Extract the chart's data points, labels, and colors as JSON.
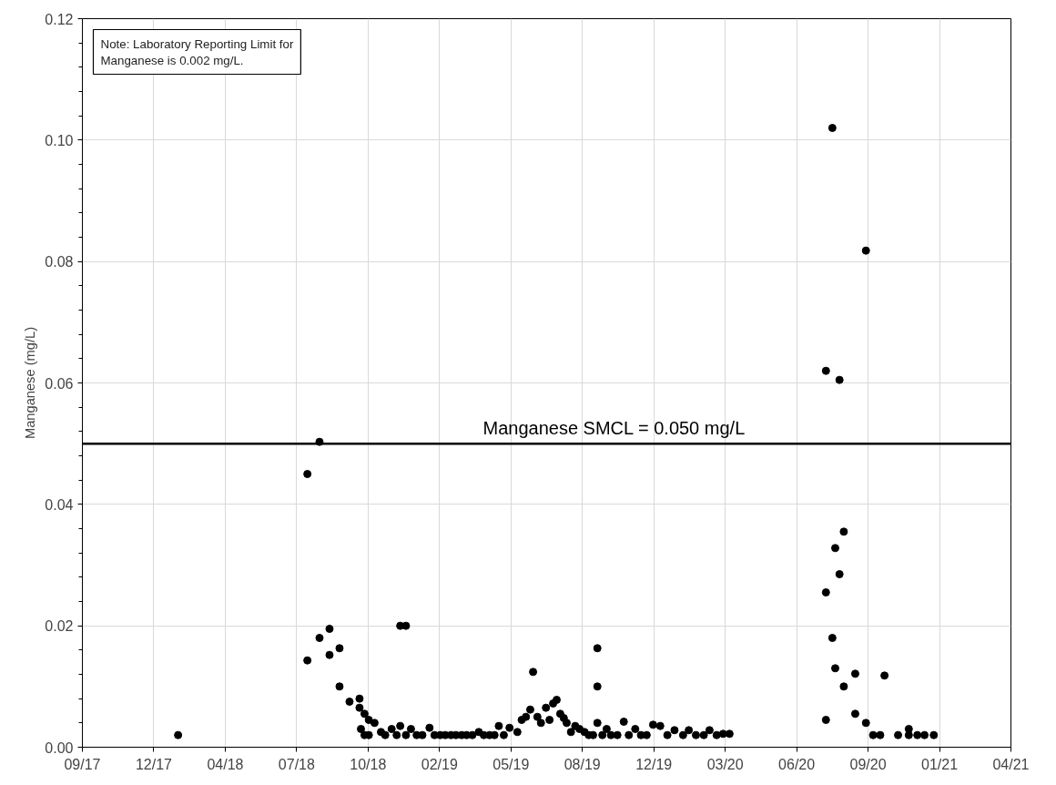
{
  "chart_data": {
    "type": "scatter",
    "ylabel": "Manganese (mg/L)",
    "x": [
      "2018-02-03",
      "2018-08-03",
      "2018-08-03",
      "2018-08-20",
      "2018-08-20",
      "2018-09-03",
      "2018-09-03",
      "2018-09-17",
      "2018-09-17",
      "2018-10-01",
      "2018-10-15",
      "2018-10-15",
      "2018-10-17",
      "2018-10-22",
      "2018-10-22",
      "2018-10-28",
      "2018-10-28",
      "2018-11-05",
      "2018-11-14",
      "2018-11-20",
      "2018-11-29",
      "2018-12-06",
      "2018-12-11",
      "2018-12-11",
      "2018-12-19",
      "2018-12-19",
      "2018-12-26",
      "2019-01-03",
      "2019-01-11",
      "2019-01-21",
      "2019-01-28",
      "2019-02-05",
      "2019-02-12",
      "2019-02-20",
      "2019-02-27",
      "2019-03-07",
      "2019-03-14",
      "2019-03-22",
      "2019-03-31",
      "2019-04-07",
      "2019-04-15",
      "2019-04-22",
      "2019-04-28",
      "2019-05-05",
      "2019-05-13",
      "2019-05-24",
      "2019-05-30",
      "2019-06-05",
      "2019-06-11",
      "2019-06-15",
      "2019-06-21",
      "2019-06-26",
      "2019-07-03",
      "2019-07-08",
      "2019-07-13",
      "2019-07-18",
      "2019-07-23",
      "2019-07-28",
      "2019-08-01",
      "2019-08-07",
      "2019-08-13",
      "2019-08-19",
      "2019-08-26",
      "2019-09-01",
      "2019-09-07",
      "2019-09-13",
      "2019-09-13",
      "2019-09-13",
      "2019-09-20",
      "2019-09-26",
      "2019-10-02",
      "2019-10-11",
      "2019-10-20",
      "2019-10-27",
      "2019-11-05",
      "2019-11-13",
      "2019-11-21",
      "2019-11-30",
      "2019-12-10",
      "2019-12-20",
      "2019-12-30",
      "2020-01-11",
      "2020-01-19",
      "2020-01-29",
      "2020-02-09",
      "2020-02-17",
      "2020-02-27",
      "2020-03-07",
      "2020-03-16",
      "2020-07-29",
      "2020-07-29",
      "2020-07-29",
      "2020-08-07",
      "2020-08-07",
      "2020-08-11",
      "2020-08-11",
      "2020-08-17",
      "2020-08-17",
      "2020-08-23",
      "2020-08-23",
      "2020-09-08",
      "2020-09-08",
      "2020-09-23",
      "2020-09-23",
      "2020-10-03",
      "2020-10-13",
      "2020-10-19",
      "2020-11-07",
      "2020-11-22",
      "2020-11-22",
      "2020-12-04",
      "2020-12-14",
      "2020-12-27"
    ],
    "series": [
      {
        "color": "#000000",
        "values": [
          0.002,
          0.045,
          0.0143,
          0.0503,
          0.018,
          0.0195,
          0.0152,
          0.0163,
          0.01,
          0.0075,
          0.008,
          0.0065,
          0.003,
          0.0055,
          0.002,
          0.0045,
          0.002,
          0.004,
          0.0025,
          0.002,
          0.003,
          0.002,
          0.0035,
          0.02,
          0.02,
          0.002,
          0.003,
          0.002,
          0.002,
          0.0032,
          0.002,
          0.002,
          0.002,
          0.002,
          0.002,
          0.002,
          0.002,
          0.002,
          0.0025,
          0.002,
          0.002,
          0.002,
          0.0035,
          0.002,
          0.0032,
          0.0025,
          0.0045,
          0.005,
          0.0062,
          0.0124,
          0.005,
          0.004,
          0.0065,
          0.0045,
          0.0072,
          0.0078,
          0.0055,
          0.0048,
          0.004,
          0.0025,
          0.0035,
          0.003,
          0.0025,
          0.002,
          0.002,
          0.0163,
          0.01,
          0.004,
          0.002,
          0.003,
          0.002,
          0.002,
          0.0042,
          0.002,
          0.003,
          0.002,
          0.002,
          0.0037,
          0.0035,
          0.002,
          0.0028,
          0.002,
          0.0028,
          0.002,
          0.002,
          0.0028,
          0.002,
          0.0022,
          0.0022,
          0.062,
          0.0255,
          0.0045,
          0.102,
          0.018,
          0.0328,
          0.013,
          0.0605,
          0.0285,
          0.0355,
          0.01,
          0.0121,
          0.0055,
          0.0818,
          0.004,
          0.002,
          0.002,
          0.0118,
          0.002,
          0.003,
          0.002,
          0.002,
          0.002,
          0.002
        ]
      }
    ],
    "xlim": [
      "2017-09-22",
      "2021-04-14"
    ],
    "xticks": [
      {
        "value": "2017-09-22",
        "label": "09/17"
      },
      {
        "value": "2017-12-31",
        "label": "12/17"
      },
      {
        "value": "2018-04-10",
        "label": "04/18"
      },
      {
        "value": "2018-07-19",
        "label": "07/18"
      },
      {
        "value": "2018-10-27",
        "label": "10/18"
      },
      {
        "value": "2019-02-04",
        "label": "02/19"
      },
      {
        "value": "2019-05-15",
        "label": "05/19"
      },
      {
        "value": "2019-08-23",
        "label": "08/19"
      },
      {
        "value": "2019-12-01",
        "label": "12/19"
      },
      {
        "value": "2020-03-10",
        "label": "03/20"
      },
      {
        "value": "2020-06-18",
        "label": "06/20"
      },
      {
        "value": "2020-09-26",
        "label": "09/20"
      },
      {
        "value": "2021-01-04",
        "label": "01/21"
      },
      {
        "value": "2021-04-14",
        "label": "04/21"
      }
    ],
    "ylim": [
      0,
      0.12
    ],
    "yticks": [
      {
        "value": 0,
        "label": "0.00"
      },
      {
        "value": 0.02,
        "label": "0.02"
      },
      {
        "value": 0.04,
        "label": "0.04"
      },
      {
        "value": 0.06,
        "label": "0.06"
      },
      {
        "value": 0.08,
        "label": "0.08"
      },
      {
        "value": 0.1,
        "label": "0.10"
      },
      {
        "value": 0.12,
        "label": "0.12"
      }
    ],
    "ref_lines": [
      {
        "axis": "y",
        "value": 0.05,
        "label": "Manganese SMCL = 0.050 mg/L",
        "color": "#000000",
        "line_style": "solid"
      }
    ],
    "annotations": [
      "Note: Laboratory Reporting Limit for Manganese is 0.002 mg/L."
    ],
    "grid": true,
    "marker": "circle"
  }
}
